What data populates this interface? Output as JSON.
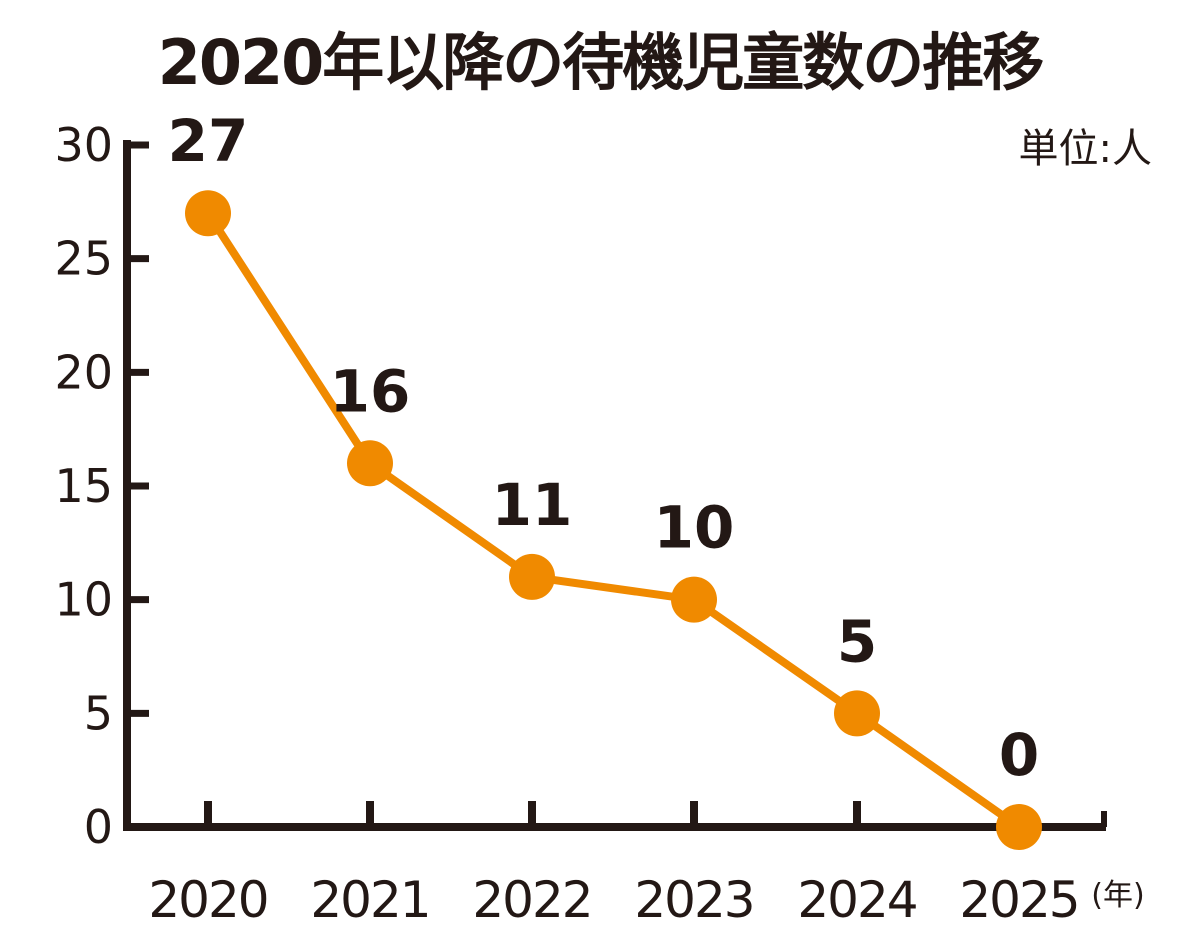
{
  "chart_data": {
    "type": "line",
    "title": "2020年以降の待機児童数の推移",
    "unit_label": "単位:人",
    "xlabel": "(年)",
    "ylabel": "",
    "categories": [
      "2020",
      "2021",
      "2022",
      "2023",
      "2024",
      "2025"
    ],
    "series": [
      {
        "name": "待機児童数",
        "values": [
          27,
          16,
          11,
          10,
          5,
          0
        ]
      }
    ],
    "data_labels": [
      "27",
      "16",
      "11",
      "10",
      "5",
      "0"
    ],
    "ylim": [
      0,
      30
    ],
    "yticks": [
      0,
      5,
      10,
      15,
      20,
      25,
      30
    ],
    "ytick_labels": [
      "0",
      "5",
      "10",
      "15",
      "20",
      "25",
      "30"
    ],
    "grid": false,
    "line_color": "#F08A00",
    "axis_color": "#231815"
  }
}
